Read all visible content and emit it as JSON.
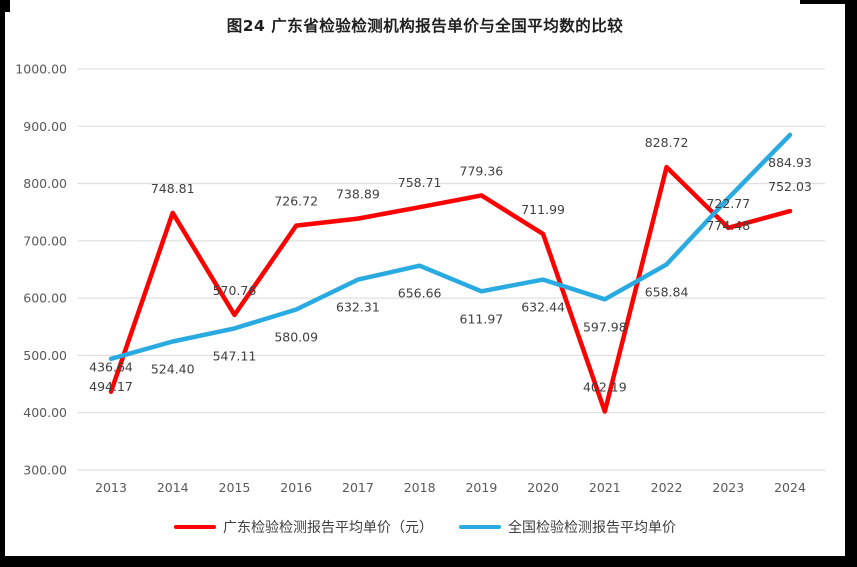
{
  "chart_data": {
    "type": "line",
    "title": "图24  广东省检验检测机构报告单价与全国平均数的比较",
    "categories": [
      "2013",
      "2014",
      "2015",
      "2016",
      "2017",
      "2018",
      "2019",
      "2020",
      "2021",
      "2022",
      "2023",
      "2024"
    ],
    "series": [
      {
        "name": "广东检验检测报告平均单价（元）",
        "color": "#fe0000",
        "values": [
          436.64,
          748.81,
          570.76,
          726.72,
          738.89,
          758.71,
          779.36,
          711.99,
          402.19,
          828.72,
          722.77,
          752.03
        ],
        "label_position": "above"
      },
      {
        "name": "全国检验检测报告平均单价",
        "color": "#29abe1",
        "values": [
          494.17,
          524.4,
          547.11,
          580.09,
          632.31,
          656.66,
          611.97,
          632.44,
          597.98,
          658.84,
          774.48,
          884.93
        ],
        "label_position": "below"
      }
    ],
    "y_axis": {
      "min": 300,
      "max": 1000,
      "step": 100,
      "tick_decimals": 2
    },
    "x_axis": {
      "label_decimals": 0
    },
    "grid": true,
    "gridline_color": "#d9d9d9",
    "data_label_color": "#404040",
    "axis_label_color": "#595959",
    "legend_position": "bottom"
  }
}
